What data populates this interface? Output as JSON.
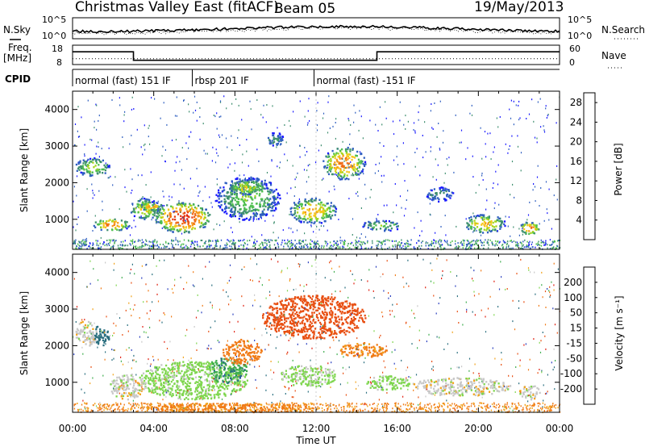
{
  "header": {
    "title": "Christmas Valley East (fitACF)",
    "beam": "Beam 05",
    "date": "19/May/2013"
  },
  "labels": {
    "n_sky": "N.Sky",
    "n_search": "N.Search",
    "freq": "Freq.",
    "freq_unit": "[MHz]",
    "nave": "Nave",
    "cpid": "CPID",
    "y_axis": "Slant Range [km]",
    "x_axis": "Time UT",
    "power_bar": "Power [dB]",
    "velocity_bar": "Velocity [m s⁻¹]"
  },
  "noise_panel": {
    "left_ticks": [
      "10^5",
      "10^0"
    ],
    "right_ticks": [
      "10^5",
      "10^0"
    ]
  },
  "freq_panel": {
    "left_ticks": [
      "18",
      "8"
    ],
    "right_ticks": [
      "60",
      "0"
    ],
    "freq_segments": [
      {
        "start_h": 0,
        "end_h": 3,
        "mhz": 14.6
      },
      {
        "start_h": 3,
        "end_h": 15,
        "mhz": 10.2
      },
      {
        "start_h": 15,
        "end_h": 24,
        "mhz": 14.6
      }
    ],
    "nave_level": 18
  },
  "cpid_segments": [
    {
      "label": "normal (fast) 151 IF",
      "start_h": 0,
      "end_h": 5.9
    },
    {
      "label": "rbsp 201 IF",
      "start_h": 5.9,
      "end_h": 11.9
    },
    {
      "label": "normal (fast) -151 IF",
      "start_h": 11.9,
      "end_h": 24
    }
  ],
  "y_ticks": [
    "1000",
    "2000",
    "3000",
    "4000"
  ],
  "x_ticks": [
    "00:00",
    "04:00",
    "08:00",
    "12:00",
    "16:00",
    "20:00",
    "00:00"
  ],
  "power_scale": {
    "ticks": [
      "4",
      "8",
      "12",
      "16",
      "20",
      "24",
      "28"
    ],
    "colors": [
      "#1a1aff",
      "#2f5fc0",
      "#3f8f6f",
      "#4fbf4f",
      "#a6d61e",
      "#f6c71c",
      "#f59a1a",
      "#f06a16",
      "#e63a12",
      "#e01a10"
    ]
  },
  "velocity_scale": {
    "ticks": [
      "200",
      "100",
      "50",
      "15",
      "-15",
      "-50",
      "-100",
      "-200"
    ],
    "colors": [
      "#2a3fbf",
      "#2a6f7f",
      "#3fae4f",
      "#7fd64f",
      "#c8c8c8",
      "#f2a21a",
      "#f07a16",
      "#e84f12",
      "#e02010"
    ]
  },
  "chart_data": {
    "type": "heatmap",
    "title": "Christmas Valley East (fitACF)",
    "xlabel": "Time UT",
    "ylabel": "Slant Range [km]",
    "x_range_hours": [
      0,
      24
    ],
    "y_range_km": [
      180,
      4500
    ],
    "power_range_db": [
      0,
      30
    ],
    "velocity_range_ms": [
      -250,
      250
    ],
    "power_regions": [
      {
        "t0": 0.1,
        "t1": 1.8,
        "r0": 2200,
        "r1": 2700,
        "db": 14
      },
      {
        "t0": 1.0,
        "t1": 2.8,
        "r0": 700,
        "r1": 1050,
        "db": 22
      },
      {
        "t0": 2.8,
        "t1": 4.2,
        "r0": 1000,
        "r1": 1600,
        "db": 16
      },
      {
        "t0": 4.0,
        "t1": 6.8,
        "r0": 650,
        "r1": 1500,
        "db": 27
      },
      {
        "t0": 3.3,
        "t1": 4.4,
        "r0": 1250,
        "r1": 1500,
        "db": 20
      },
      {
        "t0": 7.0,
        "t1": 10.2,
        "r0": 1000,
        "r1": 2200,
        "db": 12
      },
      {
        "t0": 7.6,
        "t1": 9.6,
        "r0": 1700,
        "r1": 2100,
        "db": 16
      },
      {
        "t0": 9.5,
        "t1": 10.4,
        "r0": 3000,
        "r1": 3400,
        "db": 8
      },
      {
        "t0": 10.6,
        "t1": 13.0,
        "r0": 900,
        "r1": 1600,
        "db": 18
      },
      {
        "t0": 12.3,
        "t1": 14.4,
        "r0": 2100,
        "r1": 3000,
        "db": 22
      },
      {
        "t0": 14.2,
        "t1": 16.2,
        "r0": 700,
        "r1": 1000,
        "db": 12
      },
      {
        "t0": 17.4,
        "t1": 18.8,
        "r0": 1500,
        "r1": 1900,
        "db": 8
      },
      {
        "t0": 19.2,
        "t1": 21.3,
        "r0": 650,
        "r1": 1150,
        "db": 18
      },
      {
        "t0": 22.0,
        "t1": 23.0,
        "r0": 600,
        "r1": 950,
        "db": 22
      }
    ],
    "velocity_regions": [
      {
        "t0": 0.1,
        "t1": 1.2,
        "r0": 2000,
        "r1": 2700,
        "v": 0
      },
      {
        "t0": 1.0,
        "t1": 1.8,
        "r0": 2000,
        "r1": 2600,
        "v": 150
      },
      {
        "t0": 1.8,
        "t1": 3.5,
        "r0": 550,
        "r1": 1250,
        "v": 0
      },
      {
        "t0": 3.2,
        "t1": 8.6,
        "r0": 550,
        "r1": 1600,
        "v": 30
      },
      {
        "t0": 6.6,
        "t1": 8.6,
        "r0": 1000,
        "r1": 1700,
        "v": 90
      },
      {
        "t0": 7.3,
        "t1": 9.3,
        "r0": 1500,
        "r1": 2200,
        "v": -80
      },
      {
        "t0": 9.3,
        "t1": 14.4,
        "r0": 2200,
        "r1": 3400,
        "v": -180
      },
      {
        "t0": 10.2,
        "t1": 13.0,
        "r0": 900,
        "r1": 1500,
        "v": 25
      },
      {
        "t0": 13.0,
        "t1": 15.5,
        "r0": 1700,
        "r1": 2100,
        "v": -60
      },
      {
        "t0": 14.4,
        "t1": 16.6,
        "r0": 800,
        "r1": 1200,
        "v": 30
      },
      {
        "t0": 16.6,
        "t1": 21.6,
        "r0": 650,
        "r1": 1150,
        "v": 0
      },
      {
        "t0": 22.0,
        "t1": 23.0,
        "r0": 550,
        "r1": 950,
        "v": 0
      },
      {
        "t0": 3.5,
        "t1": 12.0,
        "r0": 200,
        "r1": 450,
        "v": -60
      }
    ]
  }
}
